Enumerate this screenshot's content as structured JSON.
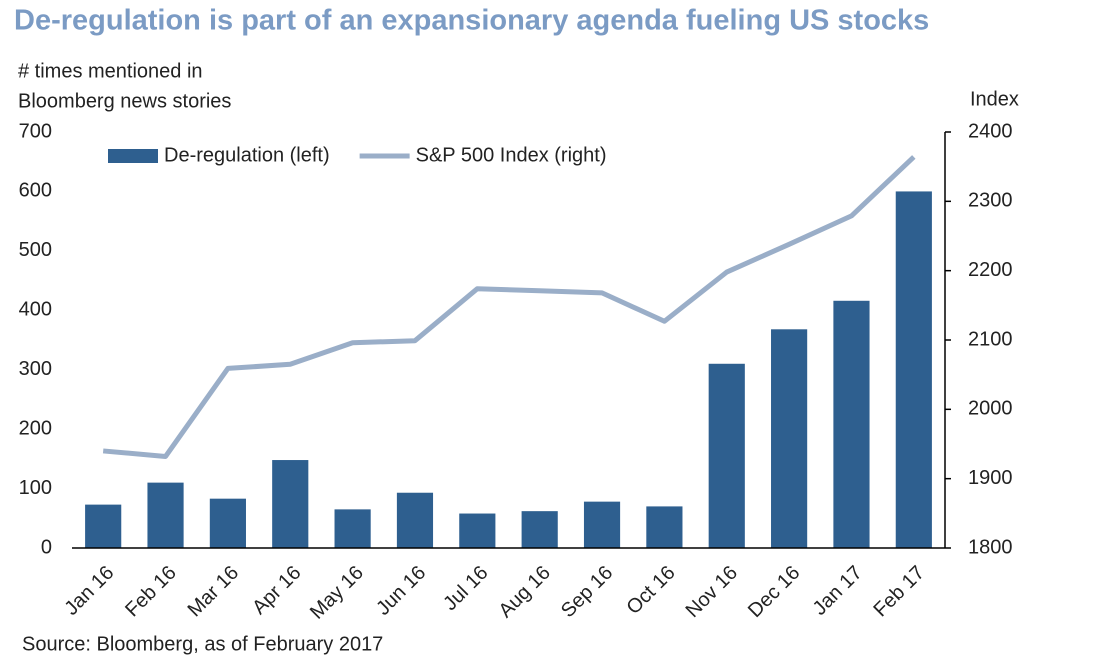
{
  "chart_data": {
    "type": "bar_line",
    "title": "De-regulation is part of an expansionary agenda fueling US stocks",
    "y_label": [
      "# times mentioned in",
      "Bloomberg news stories"
    ],
    "y2_label": "Index",
    "source": "Source: Bloomberg, as of February 2017",
    "categories": [
      "Jan 16",
      "Feb 16",
      "Mar 16",
      "Apr 16",
      "May 16",
      "Jun 16",
      "Jul 16",
      "Aug 16",
      "Sep 16",
      "Oct 16",
      "Nov 16",
      "Dec 16",
      "Jan 17",
      "Feb 17"
    ],
    "series": [
      {
        "name": "De-regulation (left)",
        "color": "#2e5f8f",
        "kind": "bar",
        "values": [
          73,
          110,
          83,
          148,
          65,
          93,
          58,
          62,
          78,
          70,
          310,
          368,
          416,
          600
        ]
      },
      {
        "name": "S&P 500 Index (right)",
        "color": "#9aaec8",
        "kind": "line",
        "axis": "y2",
        "values": [
          1940,
          1932,
          2059,
          2065,
          2096,
          2099,
          2174,
          2171,
          2168,
          2127,
          2198,
          2238,
          2279,
          2364
        ]
      }
    ],
    "ylim": [
      0,
      700
    ],
    "yticks": [
      0,
      100,
      200,
      300,
      400,
      500,
      600,
      700
    ],
    "y2lim": [
      1800,
      2400
    ],
    "y2ticks": [
      1800,
      1900,
      2000,
      2100,
      2200,
      2300,
      2400
    ],
    "legend": "upper left",
    "grid": false
  }
}
